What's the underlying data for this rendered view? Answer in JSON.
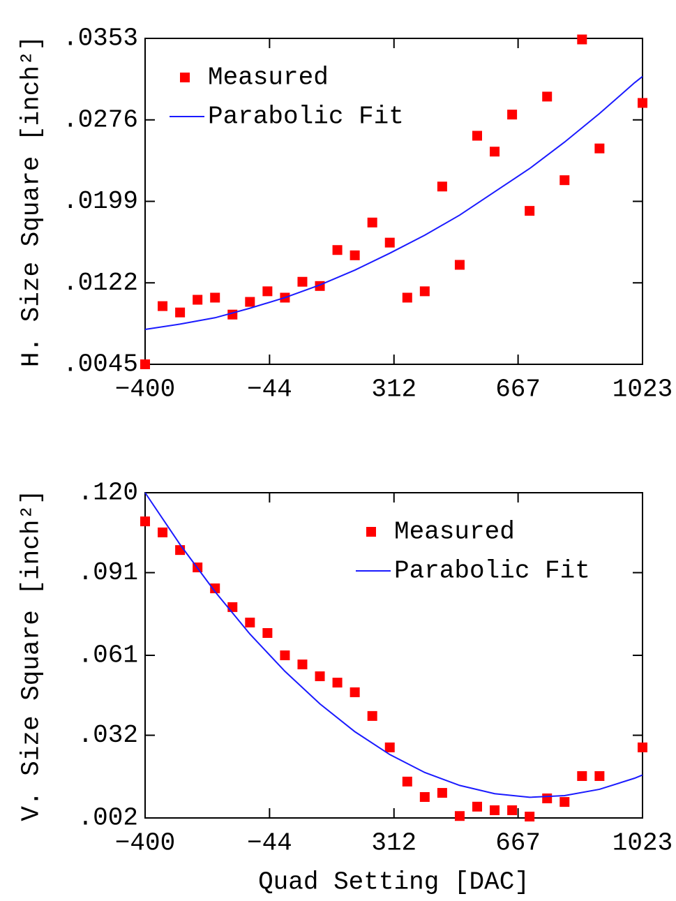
{
  "chart_data": [
    {
      "type": "scatter",
      "ylabel": "H. Size Square [inch²]",
      "xlim": [
        -400,
        1023
      ],
      "xticks": [
        {
          "value": -400,
          "label": "−400"
        },
        {
          "value": -44,
          "label": "−44"
        },
        312,
        667,
        1023
      ],
      "ylim": [
        0.0045,
        0.0353
      ],
      "yticks": [
        {
          "value": 0.0045,
          "label": ".0045"
        },
        {
          "value": 0.0122,
          "label": ".0122"
        },
        {
          "value": 0.0199,
          "label": ".0199"
        },
        {
          "value": 0.0276,
          "label": ".0276"
        },
        {
          "value": 0.0353,
          "label": ".0353"
        }
      ],
      "legend": "upper left",
      "series": [
        {
          "name": "Measured",
          "color": "#ff0000",
          "mode": "markers",
          "x": [
            -400,
            -350,
            -300,
            -250,
            -200,
            -150,
            -100,
            -50,
            0,
            50,
            100,
            150,
            200,
            250,
            300,
            350,
            400,
            450,
            500,
            550,
            600,
            650,
            700,
            750,
            800,
            850,
            900,
            1023
          ],
          "values": [
            0.0045,
            0.01,
            0.0094,
            0.0106,
            0.0108,
            0.0092,
            0.0104,
            0.0114,
            0.0108,
            0.0123,
            0.0119,
            0.0153,
            0.0148,
            0.0179,
            0.016,
            0.0108,
            0.0114,
            0.0213,
            0.0139,
            0.0261,
            0.0246,
            0.0281,
            0.019,
            0.0298,
            0.0219,
            0.0352,
            0.0249,
            0.0292
          ]
        },
        {
          "name": "Parabolic Fit",
          "color": "#1a1aff",
          "mode": "lines",
          "x": [
            -400,
            -300,
            -200,
            -100,
            0,
            100,
            200,
            300,
            400,
            500,
            600,
            700,
            800,
            900,
            1000,
            1023
          ],
          "values": [
            0.0078,
            0.0083,
            0.0089,
            0.0098,
            0.0108,
            0.012,
            0.0134,
            0.015,
            0.0167,
            0.0186,
            0.0208,
            0.023,
            0.0255,
            0.0282,
            0.0311,
            0.0317
          ]
        }
      ]
    },
    {
      "type": "scatter",
      "ylabel": "V. Size Square [inch²]",
      "xlabel": "Quad Setting [DAC]",
      "xlim": [
        -400,
        1023
      ],
      "xticks": [
        {
          "value": -400,
          "label": "−400"
        },
        {
          "value": -44,
          "label": "−44"
        },
        312,
        667,
        1023
      ],
      "ylim": [
        0.002,
        0.12
      ],
      "yticks": [
        {
          "value": 0.002,
          "label": ".002"
        },
        {
          "value": 0.032,
          "label": ".032"
        },
        {
          "value": 0.061,
          "label": ".061"
        },
        {
          "value": 0.091,
          "label": ".091"
        },
        {
          "value": 0.12,
          "label": ".120"
        }
      ],
      "legend": "upper right",
      "series": [
        {
          "name": "Measured",
          "color": "#ff0000",
          "mode": "markers",
          "x": [
            -400,
            -350,
            -300,
            -250,
            -200,
            -150,
            -100,
            -50,
            0,
            50,
            100,
            150,
            200,
            250,
            300,
            350,
            400,
            450,
            500,
            550,
            600,
            650,
            700,
            750,
            800,
            850,
            900,
            1023
          ],
          "values": [
            0.1096,
            0.1056,
            0.0992,
            0.0929,
            0.0853,
            0.0785,
            0.0729,
            0.0691,
            0.061,
            0.0577,
            0.0534,
            0.0511,
            0.0476,
            0.039,
            0.0276,
            0.0152,
            0.0096,
            0.0111,
            0.0027,
            0.0061,
            0.0048,
            0.0048,
            0.0025,
            0.0091,
            0.0078,
            0.0172,
            0.0172,
            0.0276
          ]
        },
        {
          "name": "Parabolic Fit",
          "color": "#1a1aff",
          "mode": "lines",
          "x": [
            -400,
            -300,
            -200,
            -100,
            0,
            100,
            200,
            300,
            400,
            500,
            600,
            700,
            800,
            900,
            1000,
            1023
          ],
          "values": [
            0.12,
            0.1012,
            0.0841,
            0.0687,
            0.0552,
            0.0434,
            0.0333,
            0.025,
            0.0185,
            0.0138,
            0.0108,
            0.0095,
            0.0101,
            0.0124,
            0.0164,
            0.0176
          ]
        }
      ]
    }
  ]
}
